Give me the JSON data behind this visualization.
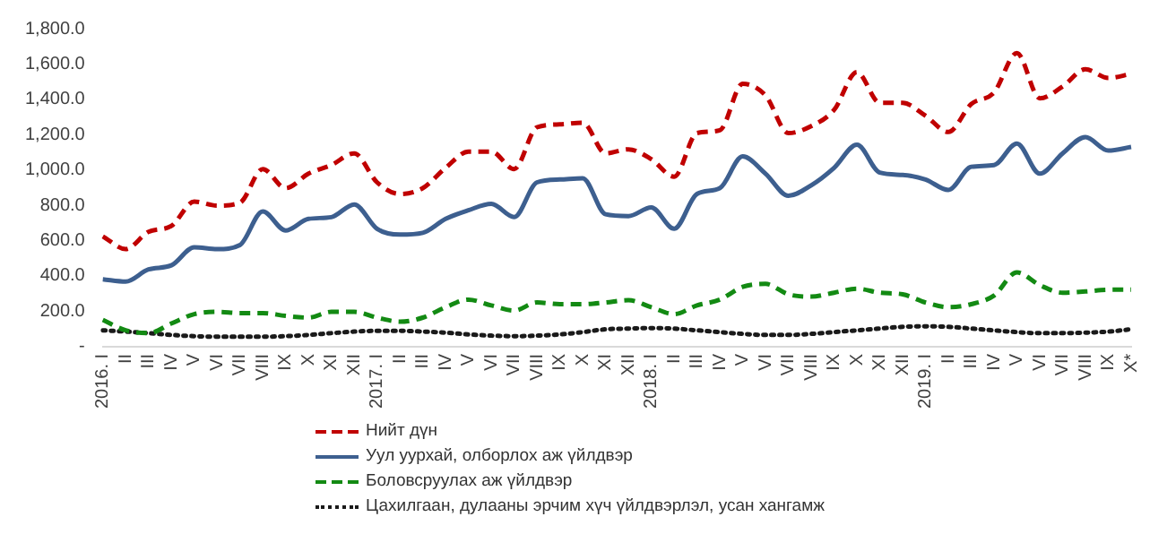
{
  "chart_data": {
    "type": "line",
    "categories": [
      "2016. I",
      "II",
      "III",
      "IV",
      "V",
      "VI",
      "VII",
      "VIII",
      "IX",
      "X",
      "XI",
      "XII",
      "2017. I",
      "II",
      "III",
      "IV",
      "V",
      "VI",
      "VII",
      "VIII",
      "IX",
      "X",
      "XI",
      "XII",
      "2018. I",
      "II",
      "III",
      "IV",
      "V",
      "VI",
      "VII",
      "VIII",
      "IX",
      "X",
      "XI",
      "XII",
      "2019. I",
      "II",
      "III",
      "IV",
      "V",
      "VI",
      "VII",
      "VIII",
      "IX",
      "X*"
    ],
    "series": [
      {
        "name": "Нийт дүн",
        "color": "#c00000",
        "line_style": "dashed",
        "values": [
          624,
          552,
          650,
          683,
          821,
          798,
          815,
          1005,
          897,
          979,
          1028,
          1094,
          930,
          864,
          897,
          1012,
          1104,
          1104,
          1005,
          1242,
          1258,
          1268,
          1094,
          1117,
          1061,
          962,
          1209,
          1225,
          1488,
          1422,
          1209,
          1248,
          1340,
          1554,
          1380,
          1380,
          1307,
          1215,
          1373,
          1439,
          1662,
          1406,
          1472,
          1570,
          1521,
          1544
        ]
      },
      {
        "name": "Уул уурхай,  олборлох аж үйлдвэр",
        "color": "#3d5f8f",
        "line_style": "solid",
        "values": [
          381,
          368,
          437,
          460,
          562,
          552,
          575,
          765,
          657,
          723,
          733,
          805,
          667,
          634,
          644,
          723,
          772,
          808,
          733,
          930,
          946,
          953,
          749,
          739,
          788,
          667,
          864,
          897,
          1077,
          979,
          854,
          913,
          1012,
          1143,
          985,
          972,
          946,
          887,
          1018,
          1028,
          1150,
          979,
          1094,
          1186,
          1110,
          1130
        ]
      },
      {
        "name": "Боловсруулах  аж үйлдвэр",
        "color": "#138a13",
        "line_style": "dashed",
        "values": [
          151,
          92,
          76,
          131,
          184,
          197,
          190,
          190,
          174,
          164,
          197,
          197,
          164,
          141,
          164,
          223,
          266,
          233,
          204,
          250,
          240,
          240,
          250,
          263,
          223,
          184,
          233,
          266,
          338,
          355,
          296,
          283,
          305,
          328,
          305,
          296,
          250,
          223,
          240,
          289,
          420,
          348,
          305,
          312,
          322,
          322
        ]
      },
      {
        "name": "Цахилгаан, дулааны эрчим хүч үйлдвэрлэл, усан хангамж",
        "color": "#1a1a1a",
        "line_style": "dotted",
        "values": [
          92,
          85,
          76,
          66,
          59,
          56,
          56,
          56,
          59,
          66,
          76,
          85,
          89,
          89,
          85,
          79,
          69,
          62,
          59,
          62,
          69,
          82,
          98,
          102,
          105,
          102,
          92,
          82,
          72,
          66,
          66,
          72,
          82,
          92,
          102,
          112,
          115,
          112,
          102,
          92,
          82,
          76,
          76,
          79,
          85,
          98
        ]
      }
    ],
    "ylim": [
      0,
      1800
    ],
    "yticks": [
      {
        "value": 0,
        "label": "-"
      },
      {
        "value": 200,
        "label": "200.0"
      },
      {
        "value": 400,
        "label": "400.0"
      },
      {
        "value": 600,
        "label": "600.0"
      },
      {
        "value": 800,
        "label": "800.0"
      },
      {
        "value": 1000,
        "label": "1,000.0"
      },
      {
        "value": 1200,
        "label": "1,200.0"
      },
      {
        "value": 1400,
        "label": "1,400.0"
      },
      {
        "value": 1600,
        "label": "1,600.0"
      },
      {
        "value": 1800,
        "label": "1,800.0"
      }
    ],
    "grid": false,
    "legend": "bottom",
    "marker": "none"
  }
}
